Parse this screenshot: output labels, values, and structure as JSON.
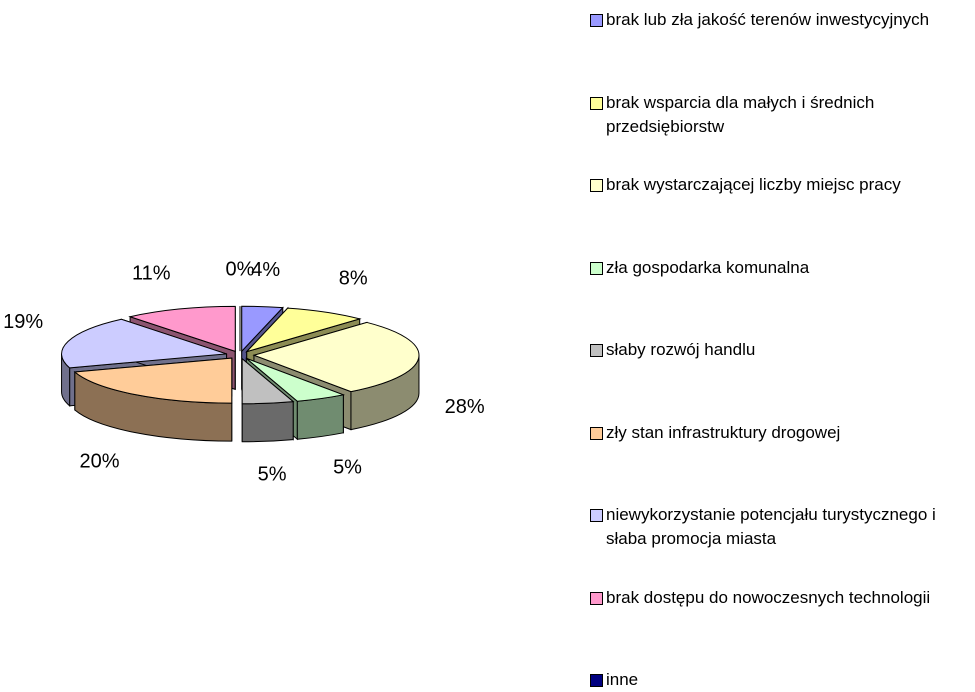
{
  "chart_data": {
    "type": "pie",
    "categories": [
      "brak lub zła jakość terenów inwestycyjnych",
      "brak wsparcia dla małych i średnich przedsiębiorstw",
      "brak wystarczającej liczby miejsc pracy",
      "zła gospodarka komunalna",
      "słaby rozwój handlu",
      "zły stan infrastruktury drogowej",
      "niewykorzystanie potencjału turystycznego i słaba promocja miasta",
      "brak dostępu do nowoczesnych technologii",
      "inne"
    ],
    "values": [
      4,
      8,
      28,
      5,
      5,
      20,
      19,
      11,
      0
    ],
    "value_labels": [
      "4%",
      "8%",
      "28%",
      "5%",
      "5%",
      "20%",
      "19%",
      "11%",
      "0%"
    ],
    "colors": [
      "#9999ff",
      "#ffff99",
      "#ffffcc",
      "#ccffcc",
      "#c0c0c0",
      "#ffcc99",
      "#ccccff",
      "#ff99cc",
      "#000080"
    ],
    "legend": "right"
  }
}
